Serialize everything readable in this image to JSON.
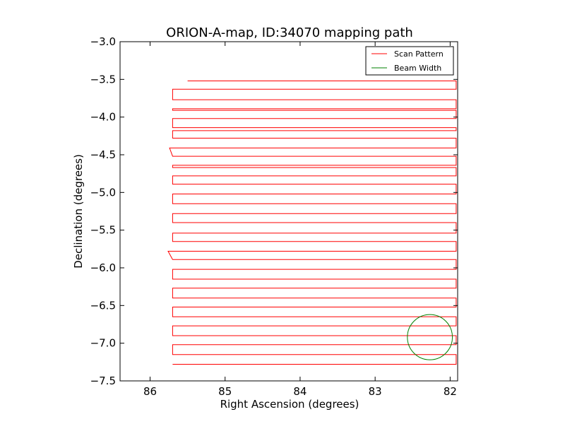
{
  "chart_data": {
    "type": "line",
    "title": "ORION-A-map, ID:34070 mapping path",
    "xlabel": "Right Ascension (degrees)",
    "ylabel": "Declination (degrees)",
    "xlim": [
      86.4,
      81.9
    ],
    "ylim": [
      -7.5,
      -3.0
    ],
    "x_ticks": [
      86,
      85,
      84,
      83,
      82
    ],
    "x_tick_labels": [
      "86",
      "85",
      "84",
      "83",
      "82"
    ],
    "y_ticks": [
      -3.0,
      -3.5,
      -4.0,
      -4.5,
      -5.0,
      -5.5,
      -6.0,
      -6.5,
      -7.0,
      -7.5
    ],
    "y_tick_labels": [
      "−3.0",
      "−3.5",
      "−4.0",
      "−4.5",
      "−5.0",
      "−5.5",
      "−6.0",
      "−6.5",
      "−7.0",
      "−7.5"
    ],
    "grid": false,
    "legend_placement": "top-right",
    "series": [
      {
        "name": "Scan Pattern",
        "color": "#ff0000",
        "rows": [
          -3.52,
          -3.63,
          -3.77,
          -3.89,
          -3.91,
          -4.02,
          -4.14,
          -4.18,
          -4.28,
          -4.41,
          -4.52,
          -4.64,
          -4.67,
          -4.78,
          -4.89,
          -5.02,
          -5.15,
          -5.28,
          -5.4,
          -5.54,
          -5.65,
          -5.78,
          -5.89,
          -6.02,
          -6.15,
          -6.27,
          -6.4,
          -6.52,
          -6.65,
          -6.77,
          -6.9,
          -7.02,
          -7.15,
          -7.28
        ],
        "x_left": [
          85.5,
          85.7,
          85.7,
          85.7,
          85.7,
          85.7,
          85.7,
          85.7,
          85.7,
          85.74,
          85.7,
          85.7,
          85.7,
          85.7,
          85.7,
          85.7,
          85.7,
          85.7,
          85.7,
          85.7,
          85.7,
          85.76,
          85.7,
          85.7,
          85.7,
          85.7,
          85.7,
          85.7,
          85.7,
          85.7,
          85.7,
          85.7,
          85.7,
          85.7
        ],
        "x_right": [
          81.92,
          81.92,
          81.92,
          81.92,
          81.92,
          81.92,
          81.92,
          81.92,
          81.92,
          81.92,
          81.92,
          81.92,
          81.92,
          81.92,
          81.92,
          81.92,
          81.92,
          81.92,
          81.92,
          81.92,
          81.92,
          81.92,
          81.92,
          81.92,
          81.92,
          81.92,
          81.92,
          81.92,
          81.92,
          81.92,
          81.92,
          81.92,
          81.92,
          81.92
        ]
      },
      {
        "name": "Beam Width",
        "color": "#008000",
        "center": [
          82.27,
          -6.92
        ],
        "radius_deg": 0.3
      }
    ]
  }
}
